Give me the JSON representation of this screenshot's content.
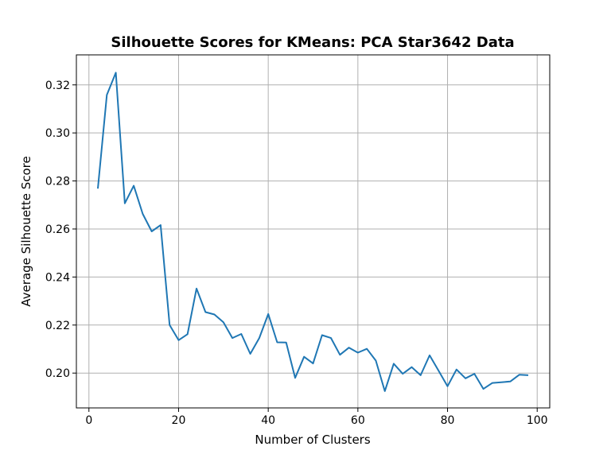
{
  "chart_data": {
    "type": "line",
    "title": "Silhouette Scores for KMeans: PCA Star3642 Data",
    "xlabel": "Number of Clusters",
    "ylabel": "Average Silhouette Score",
    "xlim": [
      -2.8,
      102.8
    ],
    "ylim": [
      0.1855,
      0.3325
    ],
    "xticks": [
      0,
      20,
      40,
      60,
      80,
      100
    ],
    "xtick_labels": [
      "0",
      "20",
      "40",
      "60",
      "80",
      "100"
    ],
    "yticks": [
      0.2,
      0.22,
      0.24,
      0.26,
      0.28,
      0.3,
      0.32
    ],
    "ytick_labels": [
      "0.20",
      "0.22",
      "0.24",
      "0.26",
      "0.28",
      "0.30",
      "0.32"
    ],
    "grid": true,
    "line_color": "#1f77b4",
    "series": [
      {
        "x": [
          2,
          4,
          6,
          8,
          10,
          12,
          14,
          16,
          18,
          20,
          22,
          24,
          26,
          28,
          30,
          32,
          34,
          36,
          38,
          40,
          42,
          44,
          46,
          48,
          50,
          52,
          54,
          56,
          58,
          60,
          62,
          64,
          66,
          68,
          70,
          72,
          74,
          76,
          78,
          80,
          82,
          84,
          86,
          88,
          90,
          92,
          94,
          96,
          98
        ],
        "values": [
          0.2768,
          0.3158,
          0.3251,
          0.2707,
          0.278,
          0.2663,
          0.259,
          0.2616,
          0.22,
          0.2137,
          0.2162,
          0.2352,
          0.2254,
          0.2244,
          0.2212,
          0.2146,
          0.2163,
          0.208,
          0.2146,
          0.2246,
          0.2128,
          0.2127,
          0.198,
          0.2068,
          0.204,
          0.2158,
          0.2146,
          0.2076,
          0.2106,
          0.2085,
          0.2101,
          0.2052,
          0.1925,
          0.2039,
          0.1997,
          0.2025,
          0.1991,
          0.2074,
          0.201,
          0.1945,
          0.2015,
          0.1978,
          0.1997,
          0.1934,
          0.1959,
          0.1962,
          0.1965,
          0.1993,
          0.1991
        ]
      }
    ]
  }
}
